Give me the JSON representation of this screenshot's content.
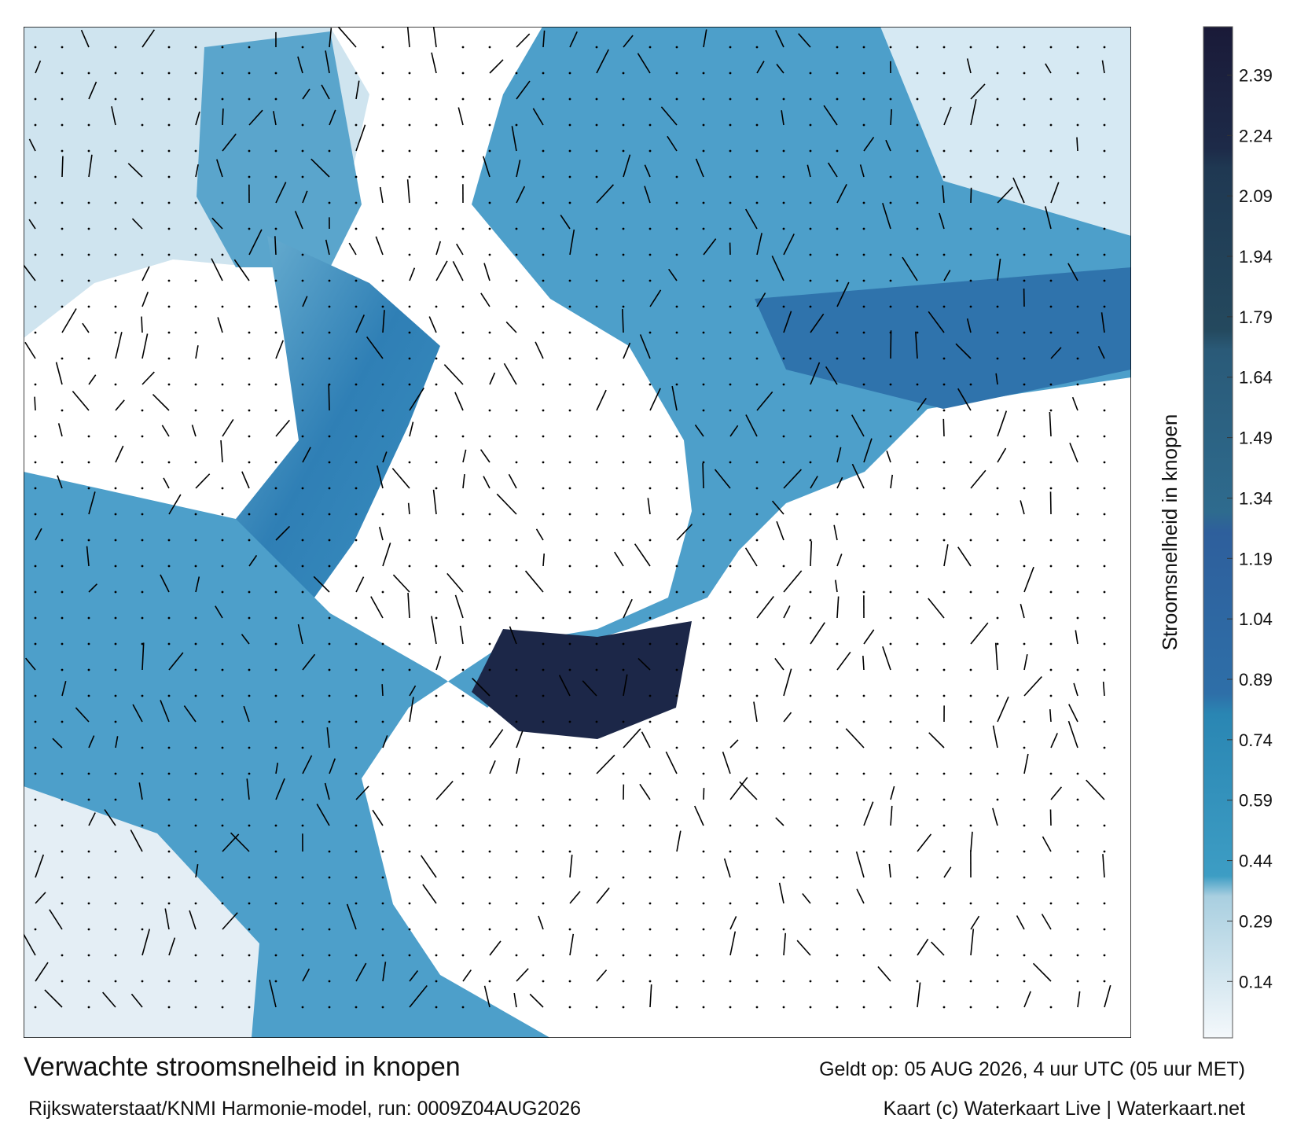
{
  "map": {
    "title": "Verwachte stroomsnelheid in knopen",
    "model": "Rijkswaterstaat/KNMI Harmonie-model, run: 0009Z04AUG2026",
    "valid": "Geldt op: 05 AUG 2026, 4 uur UTC (05 uur MET)",
    "credit": "Kaart (c) Waterkaart Live | Waterkaart.net",
    "colorbar": {
      "label": "Stroomsnelheid in knopen",
      "lim": [
        0,
        2.51
      ],
      "ticks": [
        0.14,
        0.29,
        0.44,
        0.59,
        0.74,
        0.89,
        1.04,
        1.19,
        1.34,
        1.49,
        1.64,
        1.79,
        1.94,
        2.09,
        2.24,
        2.39
      ]
    }
  }
}
